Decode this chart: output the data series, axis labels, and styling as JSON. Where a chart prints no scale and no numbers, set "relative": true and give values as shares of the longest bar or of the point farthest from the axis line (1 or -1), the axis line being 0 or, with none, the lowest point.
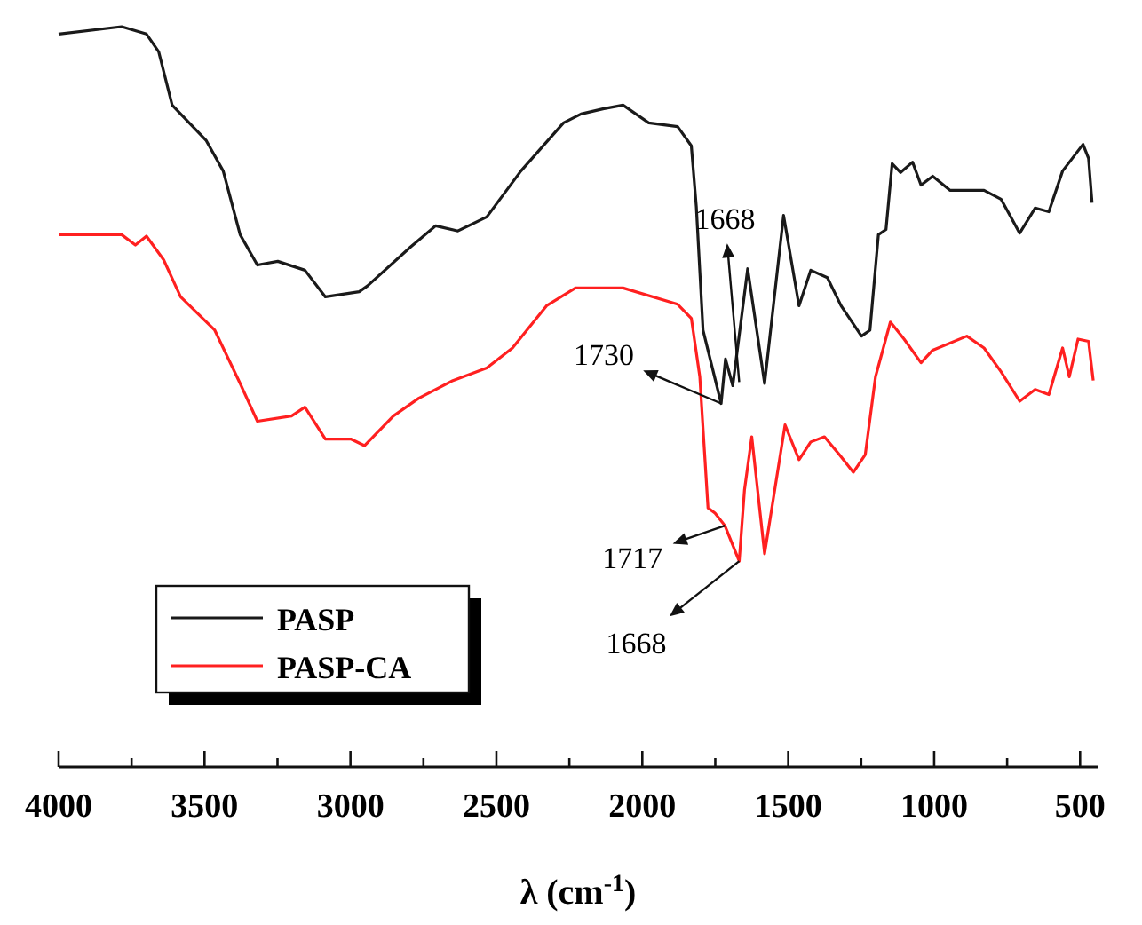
{
  "chart_data": {
    "type": "line",
    "relative": true,
    "xlabel": "λ (cm$^{-1}$)",
    "xlim": [
      4000,
      440
    ],
    "xticks": [
      4000,
      {
        "value": 3750,
        "label": null
      },
      3500,
      {
        "value": 3250,
        "label": null
      },
      3000,
      {
        "value": 2750,
        "label": null
      },
      2500,
      {
        "value": 2250,
        "label": null
      },
      2000,
      {
        "value": 1750,
        "label": null
      },
      1500,
      {
        "value": 1250,
        "label": null
      },
      1000,
      {
        "value": 750,
        "label": null
      },
      500
    ],
    "legend": "bottom left",
    "grid": false,
    "marker": "none",
    "line_style": "solid",
    "annotations": [
      {
        "text": "1730",
        "x": 1730,
        "y": 0.491
      },
      {
        "text": "1668",
        "x": 1668,
        "y": 0.52
      },
      {
        "text": "1717",
        "x": 1717,
        "y": 0.326
      },
      {
        "text": "1668",
        "x": 1668,
        "y": 0.278
      }
    ],
    "series": [
      {
        "name": "PASP",
        "color": "#1a1a1a",
        "x": [
          4000,
          3784,
          3699,
          3657,
          3611,
          3494,
          3436,
          3378,
          3319,
          3249,
          3156,
          3086,
          2970,
          2941,
          2795,
          2708,
          2632,
          2533,
          2416,
          2270,
          2210,
          2135,
          2066,
          1978,
          1879,
          1832,
          1815,
          1792,
          1730,
          1715,
          1690,
          1639,
          1581,
          1516,
          1463,
          1423,
          1366,
          1319,
          1249,
          1220,
          1191,
          1165,
          1144,
          1115,
          1074,
          1045,
          1005,
          946,
          829,
          771,
          707,
          654,
          607,
          560,
          490,
          471,
          459
        ],
        "values": [
          0.99,
          1.0,
          0.99,
          0.966,
          0.894,
          0.846,
          0.805,
          0.719,
          0.678,
          0.683,
          0.671,
          0.635,
          0.642,
          0.65,
          0.702,
          0.731,
          0.724,
          0.743,
          0.805,
          0.87,
          0.882,
          0.889,
          0.894,
          0.87,
          0.865,
          0.839,
          0.757,
          0.59,
          0.491,
          0.551,
          0.515,
          0.673,
          0.518,
          0.745,
          0.623,
          0.671,
          0.661,
          0.623,
          0.582,
          0.59,
          0.719,
          0.726,
          0.815,
          0.803,
          0.817,
          0.786,
          0.798,
          0.779,
          0.779,
          0.767,
          0.721,
          0.755,
          0.75,
          0.805,
          0.841,
          0.822,
          0.762
        ]
      },
      {
        "name": "PASP-CA",
        "color": "#ff2020",
        "x": [
          4000,
          3784,
          3737,
          3699,
          3640,
          3582,
          3465,
          3378,
          3319,
          3202,
          3156,
          3086,
          2999,
          2952,
          2853,
          2766,
          2649,
          2533,
          2445,
          2328,
          2229,
          2066,
          1879,
          1832,
          1803,
          1775,
          1751,
          1717,
          1668,
          1650,
          1625,
          1581,
          1511,
          1463,
          1423,
          1376,
          1325,
          1277,
          1236,
          1201,
          1150,
          1103,
          1045,
          1005,
          888,
          829,
          771,
          707,
          654,
          607,
          560,
          537,
          507,
          471,
          455
        ],
        "values": [
          0.719,
          0.719,
          0.705,
          0.717,
          0.685,
          0.635,
          0.59,
          0.518,
          0.467,
          0.474,
          0.486,
          0.443,
          0.443,
          0.434,
          0.474,
          0.498,
          0.522,
          0.539,
          0.566,
          0.623,
          0.647,
          0.647,
          0.625,
          0.606,
          0.527,
          0.35,
          0.343,
          0.326,
          0.278,
          0.374,
          0.446,
          0.288,
          0.462,
          0.415,
          0.439,
          0.446,
          0.422,
          0.398,
          0.422,
          0.527,
          0.601,
          0.578,
          0.546,
          0.563,
          0.582,
          0.566,
          0.534,
          0.494,
          0.51,
          0.503,
          0.566,
          0.527,
          0.578,
          0.575,
          0.522
        ]
      }
    ]
  }
}
